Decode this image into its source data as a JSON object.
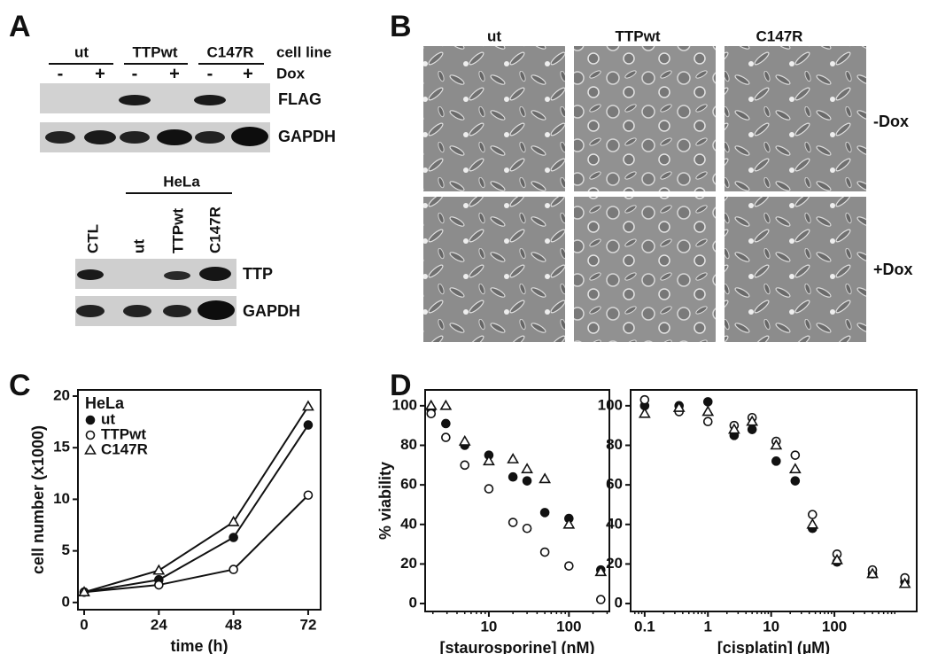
{
  "panels": {
    "A": {
      "label": "A",
      "blot1": {
        "groups": [
          "ut",
          "TTPwt",
          "C147R"
        ],
        "groups_caption": "cell line",
        "dox_caption": "Dox",
        "dox": [
          "-",
          "+",
          "-",
          "+",
          "-",
          "+"
        ],
        "rows": [
          "FLAG",
          "GAPDH"
        ]
      },
      "blot2": {
        "group": "HeLa",
        "lanes": [
          "CTL",
          "ut",
          "TTPwt",
          "C147R"
        ],
        "rows": [
          "TTP",
          "GAPDH"
        ]
      }
    },
    "B": {
      "label": "B",
      "columns": [
        "ut",
        "TTPwt",
        "C147R"
      ],
      "rows": [
        "-Dox",
        "+Dox"
      ]
    },
    "C": {
      "label": "C"
    },
    "D": {
      "label": "D"
    }
  },
  "chart_data": [
    {
      "type": "line",
      "xlabel": "time (h)",
      "ylabel": "cell number (x1000)",
      "legend_title": "HeLa",
      "legend": "upper left",
      "x": [
        0,
        24,
        48,
        72
      ],
      "xlim": [
        -2,
        76
      ],
      "xticks": [
        0,
        24,
        48,
        72
      ],
      "ylim": [
        -0.7,
        20.6
      ],
      "yticks": [
        0,
        5,
        10,
        15,
        20
      ],
      "lines": true,
      "series": [
        {
          "name": "ut",
          "color": "#111",
          "marker": "circle",
          "fill": "#111",
          "values": [
            1,
            2.2,
            6.3,
            17.2
          ]
        },
        {
          "name": "TTPwt",
          "color": "#111",
          "marker": "circle",
          "fill": "#fff",
          "values": [
            1,
            1.7,
            3.2,
            10.4
          ]
        },
        {
          "name": "C147R",
          "color": "#111",
          "marker": "triangle",
          "fill": "#fff",
          "values": [
            1,
            3.1,
            7.8,
            19
          ]
        }
      ]
    },
    {
      "type": "scatter",
      "xlabel": "[staurosporine] (nM)",
      "ylabel": "% viability",
      "xlog": true,
      "x": [
        1.9,
        2.9,
        5,
        10,
        20,
        30,
        50,
        100,
        250
      ],
      "xlim": [
        1.6,
        320
      ],
      "xticks": [
        10,
        100
      ],
      "ylim": [
        -4,
        108
      ],
      "yticks": [
        0,
        20,
        40,
        60,
        80,
        100
      ],
      "lines": false,
      "series": [
        {
          "name": "ut",
          "color": "#111",
          "marker": "circle",
          "fill": "#111",
          "values": [
            98,
            91,
            80,
            75,
            64,
            62,
            46,
            43,
            17
          ]
        },
        {
          "name": "TTPwt",
          "color": "#111",
          "marker": "circle",
          "fill": "#fff",
          "values": [
            96,
            84,
            70,
            58,
            41,
            38,
            26,
            19,
            2
          ]
        },
        {
          "name": "C147R",
          "color": "#111",
          "marker": "triangle",
          "fill": "#fff",
          "values": [
            100,
            100,
            82,
            72,
            73,
            68,
            63,
            40,
            16
          ]
        }
      ]
    },
    {
      "type": "scatter",
      "xlabel": "[cisplatin] (µM)",
      "xlog": true,
      "x": [
        0.1,
        0.35,
        1,
        2.6,
        5,
        12,
        24,
        45,
        110,
        400,
        1300
      ],
      "xlim": [
        0.06,
        2000
      ],
      "xticks": [
        0.1,
        1,
        10,
        100
      ],
      "ylim": [
        -4,
        108
      ],
      "yticks": [
        0,
        20,
        40,
        60,
        80,
        100
      ],
      "lines": false,
      "series": [
        {
          "name": "ut",
          "color": "#111",
          "marker": "circle",
          "fill": "#111",
          "values": [
            100,
            100,
            102,
            85,
            88,
            72,
            62,
            38,
            21,
            15,
            11
          ]
        },
        {
          "name": "TTPwt",
          "color": "#111",
          "marker": "circle",
          "fill": "#fff",
          "values": [
            103,
            97,
            92,
            90,
            94,
            82,
            75,
            45,
            25,
            17,
            13
          ]
        },
        {
          "name": "C147R",
          "color": "#111",
          "marker": "triangle",
          "fill": "#fff",
          "values": [
            96,
            99,
            97,
            88,
            92,
            80,
            68,
            40,
            22,
            15,
            10
          ]
        }
      ]
    }
  ]
}
